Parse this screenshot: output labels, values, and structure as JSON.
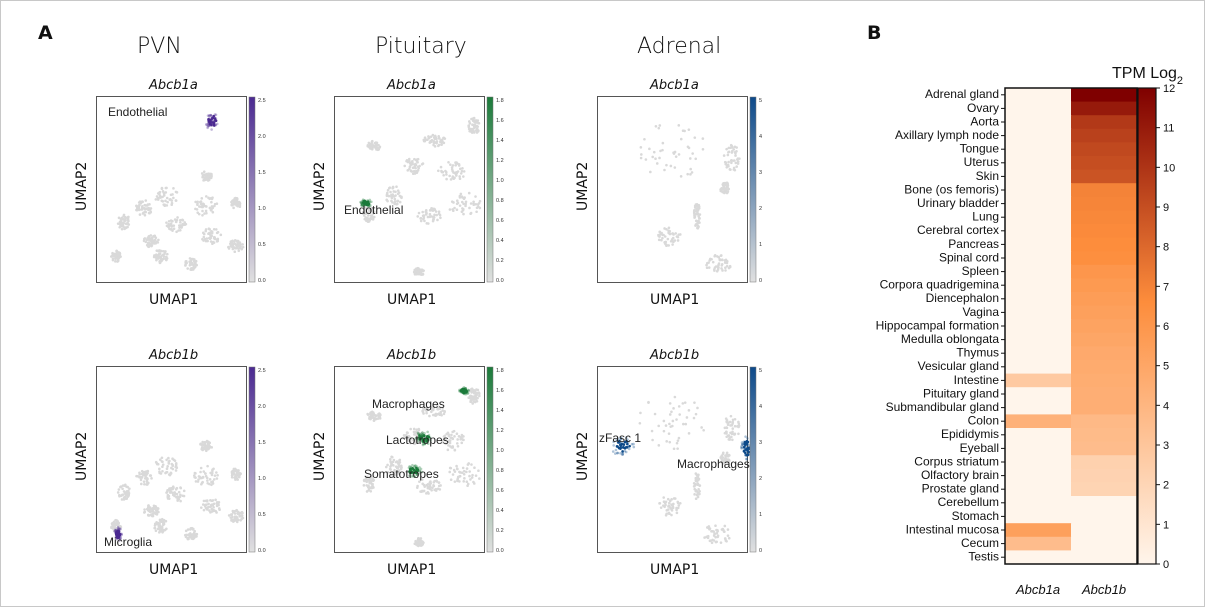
{
  "panel_a_label": "A",
  "panel_b_label": "B",
  "columns": [
    "PVN",
    "Pituitary",
    "Adrenal"
  ],
  "umap_axis_x": "UMAP1",
  "umap_axis_y": "UMAP2",
  "umap_panels": [
    {
      "gene": "Abcb1a",
      "tissue": "PVN",
      "color": "#4b2991",
      "colorbar_ticks": [
        "2.5",
        "2.0",
        "1.5",
        "1.0",
        "0.5",
        "0.0"
      ],
      "annotations": [
        "Endothelial"
      ]
    },
    {
      "gene": "Abcb1a",
      "tissue": "Pituitary",
      "color": "#1b7a3a",
      "colorbar_ticks": [
        "1.8",
        "1.6",
        "1.4",
        "1.2",
        "1.0",
        "0.8",
        "0.6",
        "0.4",
        "0.2",
        "0.0"
      ],
      "annotations": [
        "Endothelial"
      ]
    },
    {
      "gene": "Abcb1a",
      "tissue": "Adrenal",
      "color": "#0d4a8a",
      "colorbar_ticks": [
        "5",
        "4",
        "3",
        "2",
        "1",
        "0"
      ],
      "annotations": []
    },
    {
      "gene": "Abcb1b",
      "tissue": "PVN",
      "color": "#4b2991",
      "colorbar_ticks": [
        "2.5",
        "2.0",
        "1.5",
        "1.0",
        "0.5",
        "0.0"
      ],
      "annotations": [
        "Microglia"
      ]
    },
    {
      "gene": "Abcb1b",
      "tissue": "Pituitary",
      "color": "#1b7a3a",
      "colorbar_ticks": [
        "1.8",
        "1.6",
        "1.4",
        "1.2",
        "1.0",
        "0.8",
        "0.6",
        "0.4",
        "0.2",
        "0.0"
      ],
      "annotations": [
        "Macrophages",
        "Lactotropes",
        "Somatotropes"
      ]
    },
    {
      "gene": "Abcb1b",
      "tissue": "Adrenal",
      "color": "#0d4a8a",
      "colorbar_ticks": [
        "5",
        "4",
        "3",
        "2",
        "1",
        "0"
      ],
      "annotations": [
        "zFasc 1",
        "Macrophages"
      ]
    }
  ],
  "chart_data": {
    "type": "heatmap",
    "title": "TPM Log2",
    "columns": [
      "Abcb1a",
      "Abcb1b"
    ],
    "rows": [
      "Adrenal gland",
      "Ovary",
      "Aorta",
      "Axillary lymph node",
      "Tongue",
      "Uterus",
      "Skin",
      "Bone (os femoris)",
      "Urinary bladder",
      "Lung",
      "Cerebral cortex",
      "Pancreas",
      "Spinal cord",
      "Spleen",
      "Corpora quadrigemina",
      "Diencephalon",
      "Vagina",
      "Hippocampal formation",
      "Medulla oblongata",
      "Thymus",
      "Vesicular gland",
      "Intestine",
      "Pituitary gland",
      "Submandibular gland",
      "Colon",
      "Epididymis",
      "Eyeball",
      "Corpus striatum",
      "Olfactory brain",
      "Prostate gland",
      "Cerebellum",
      "Stomach",
      "Intestinal mucosa",
      "Cecum",
      "Testis"
    ],
    "values": [
      [
        0,
        12
      ],
      [
        0,
        11
      ],
      [
        0,
        9.8
      ],
      [
        0,
        9.5
      ],
      [
        0,
        9.2
      ],
      [
        0,
        9
      ],
      [
        0,
        8.8
      ],
      [
        0,
        7
      ],
      [
        0,
        6.9
      ],
      [
        0,
        6.8
      ],
      [
        0,
        6.7
      ],
      [
        0,
        6.6
      ],
      [
        0,
        6.5
      ],
      [
        0,
        6
      ],
      [
        0,
        5.8
      ],
      [
        0,
        5.6
      ],
      [
        0,
        5.4
      ],
      [
        0,
        5.2
      ],
      [
        0,
        5
      ],
      [
        0,
        4.8
      ],
      [
        0,
        4.7
      ],
      [
        2.8,
        4.6
      ],
      [
        0,
        4.5
      ],
      [
        0,
        4.5
      ],
      [
        4.3,
        3.8
      ],
      [
        0,
        3.7
      ],
      [
        0,
        3.6
      ],
      [
        0,
        2.3
      ],
      [
        0,
        2.2
      ],
      [
        0,
        2.1
      ],
      [
        0,
        0
      ],
      [
        0,
        0
      ],
      [
        5.4,
        0
      ],
      [
        3.6,
        0
      ],
      [
        0,
        0
      ]
    ],
    "colorbar": {
      "min": 0,
      "max": 12,
      "ticks": [
        "12",
        "11",
        "10",
        "9",
        "8",
        "7",
        "6",
        "5",
        "4",
        "3",
        "2",
        "1",
        "0"
      ]
    },
    "colors": {
      "low": "#fff5eb",
      "mid": "#fd8d3c",
      "high": "#7f0000"
    }
  }
}
